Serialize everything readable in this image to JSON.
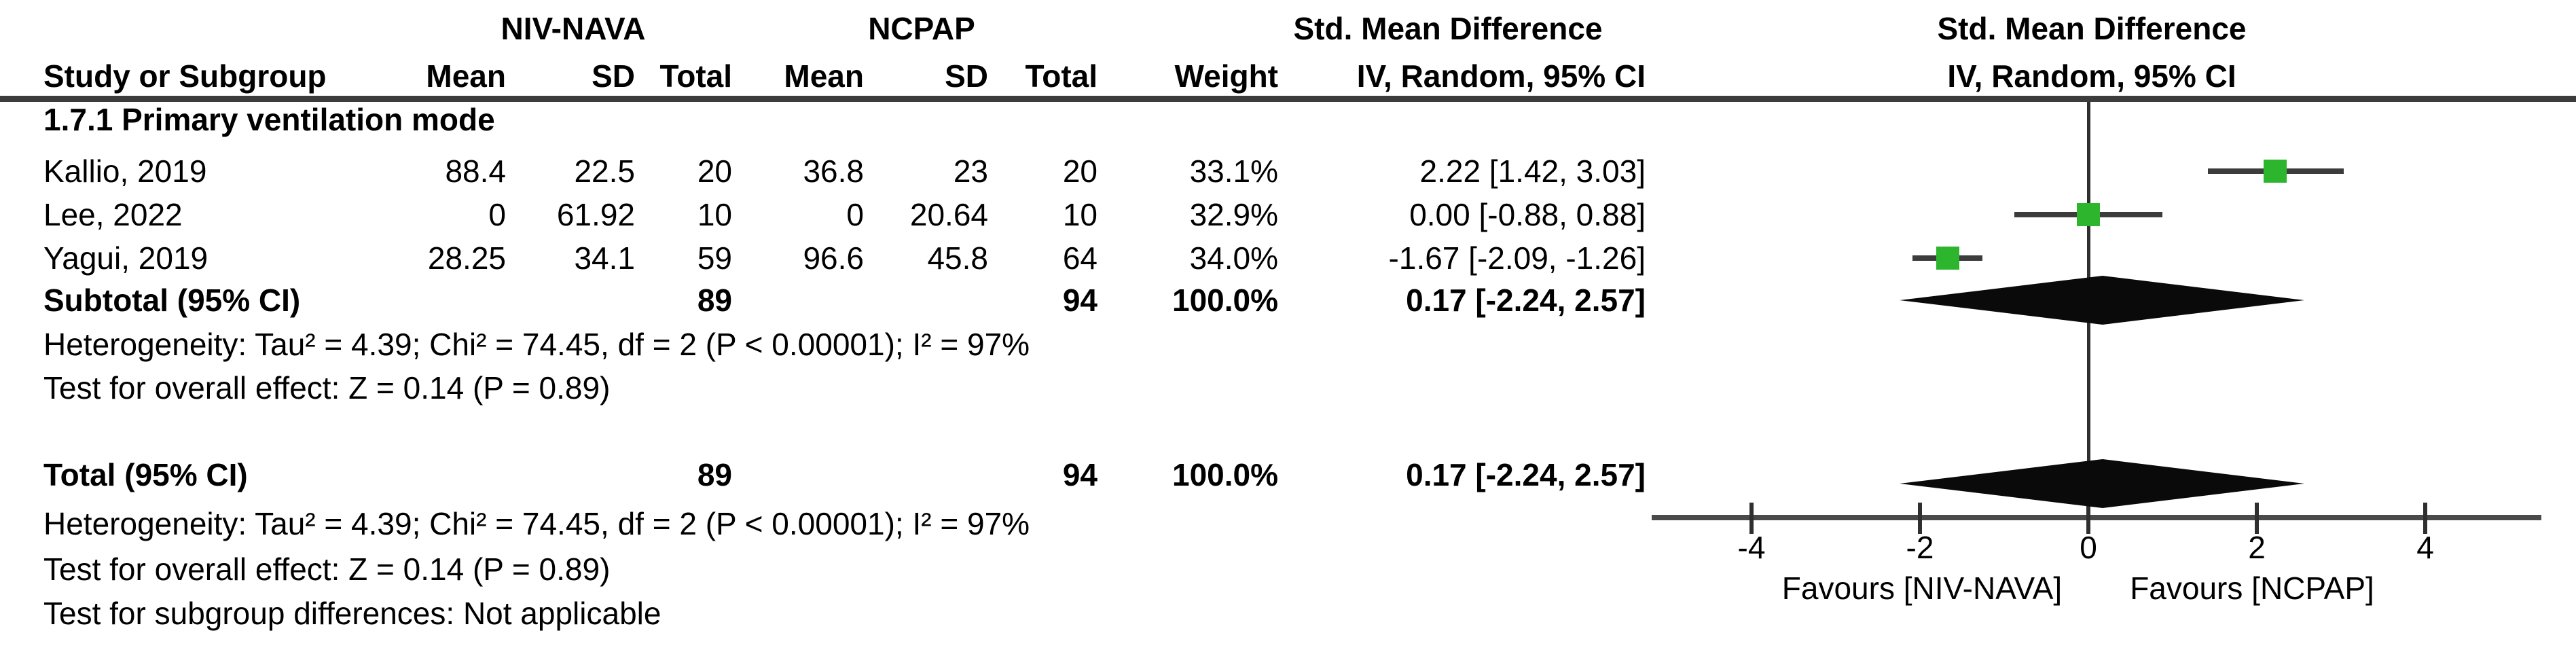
{
  "figure": {
    "header": {
      "group1": "NIV-NAVA",
      "group2": "NCPAP",
      "effect_col_title": "Std. Mean Difference",
      "effect_col_subtitle": "IV, Random, 95% CI",
      "plot_col_title": "Std. Mean Difference",
      "plot_col_subtitle": "IV, Random, 95% CI",
      "study_col": "Study or Subgroup",
      "mean_col": "Mean",
      "sd_col": "SD",
      "total_col": "Total",
      "weight_col": "Weight"
    },
    "subgroup": {
      "title": "1.7.1 Primary ventilation mode",
      "rows": [
        {
          "study": "Kallio, 2019",
          "mean1": "88.4",
          "sd1": "22.5",
          "total1": "20",
          "mean2": "36.8",
          "sd2": "23",
          "total2": "20",
          "weight": "33.1%",
          "smd_ci": "2.22 [1.42, 3.03]"
        },
        {
          "study": "Lee, 2022",
          "mean1": "0",
          "sd1": "61.92",
          "total1": "10",
          "mean2": "0",
          "sd2": "20.64",
          "total2": "10",
          "weight": "32.9%",
          "smd_ci": "0.00 [-0.88, 0.88]"
        },
        {
          "study": "Yagui, 2019",
          "mean1": "28.25",
          "sd1": "34.1",
          "total1": "59",
          "mean2": "96.6",
          "sd2": "45.8",
          "total2": "64",
          "weight": "34.0%",
          "smd_ci": "-1.67 [-2.09, -1.26]"
        }
      ],
      "subtotal": {
        "label": "Subtotal (95% CI)",
        "total1": "89",
        "total2": "94",
        "weight": "100.0%",
        "smd_ci": "0.17 [-2.24, 2.57]"
      },
      "heterogeneity": "Heterogeneity: Tau² = 4.39; Chi² = 74.45, df = 2 (P < 0.00001); I² = 97%",
      "overall_effect": "Test for overall effect: Z = 0.14 (P = 0.89)"
    },
    "total_row": {
      "label": "Total (95% CI)",
      "total1": "89",
      "total2": "94",
      "weight": "100.0%",
      "smd_ci": "0.17 [-2.24, 2.57]"
    },
    "footer": {
      "heterogeneity": "Heterogeneity: Tau² = 4.39; Chi² = 74.45, df = 2 (P < 0.00001); I² = 97%",
      "overall_effect": "Test for overall effect: Z = 0.14 (P = 0.89)",
      "subgroup_differences": "Test for subgroup differences: Not applicable"
    }
  },
  "chart_data": {
    "type": "forest",
    "title": "Std. Mean Difference",
    "subtitle": "IV, Random, 95% CI",
    "x_ticks": [
      -4,
      -2,
      0,
      2,
      4
    ],
    "xlim": [
      -5.2,
      5.4
    ],
    "zero_line_x": 0,
    "xlabel_left": "Favours [NIV-NAVA]",
    "xlabel_right": "Favours [NCPAP]",
    "marker_color": "#2db52d",
    "line_color": "#3c3c3c",
    "diamond_color": "#0a0a0a",
    "studies": [
      {
        "name": "Kallio, 2019",
        "smd": 2.22,
        "ci_low": 1.42,
        "ci_high": 3.03,
        "weight_pct": 33.1
      },
      {
        "name": "Lee, 2022",
        "smd": 0.0,
        "ci_low": -0.88,
        "ci_high": 0.88,
        "weight_pct": 32.9
      },
      {
        "name": "Yagui, 2019",
        "smd": -1.67,
        "ci_low": -2.09,
        "ci_high": -1.26,
        "weight_pct": 34.0
      }
    ],
    "subtotal": {
      "label": "Subtotal (95% CI)",
      "smd": 0.17,
      "ci_low": -2.24,
      "ci_high": 2.57
    },
    "total": {
      "label": "Total (95% CI)",
      "smd": 0.17,
      "ci_low": -2.24,
      "ci_high": 2.57
    }
  }
}
